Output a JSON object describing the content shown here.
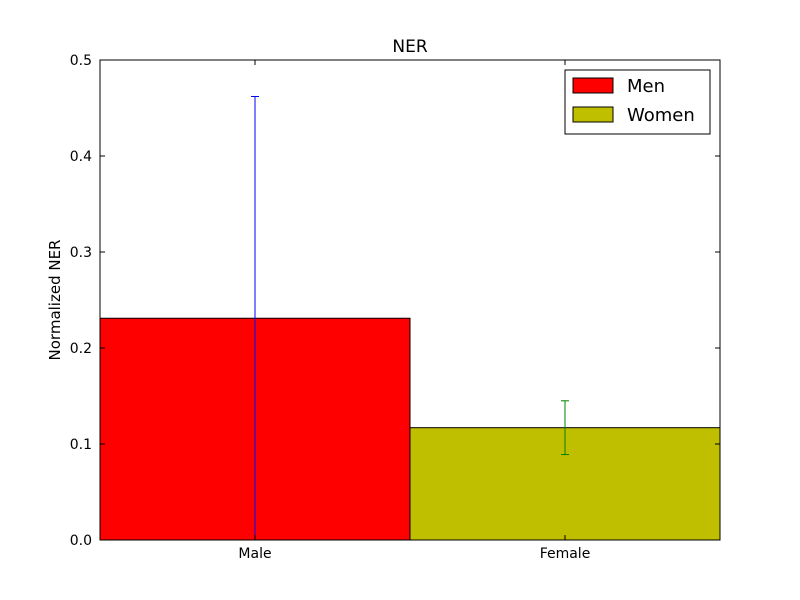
{
  "chart_data": {
    "type": "bar",
    "title": "NER",
    "xlabel": "",
    "ylabel": "Normalized NER",
    "categories": [
      "Male",
      "Female"
    ],
    "ylim": [
      0.0,
      0.5
    ],
    "yticks": [
      0.0,
      0.1,
      0.2,
      0.3,
      0.4,
      0.5
    ],
    "ytick_labels": [
      "0.0",
      "0.1",
      "0.2",
      "0.3",
      "0.4",
      "0.5"
    ],
    "series": [
      {
        "name": "Men",
        "category": "Male",
        "value": 0.231,
        "error": 0.231,
        "color": "#ff0000",
        "error_color": "#0000ff"
      },
      {
        "name": "Women",
        "category": "Female",
        "value": 0.117,
        "error": 0.028,
        "color": "#bfbf00",
        "error_color": "#008000"
      }
    ],
    "grid": false,
    "legend_position": "top-right"
  }
}
